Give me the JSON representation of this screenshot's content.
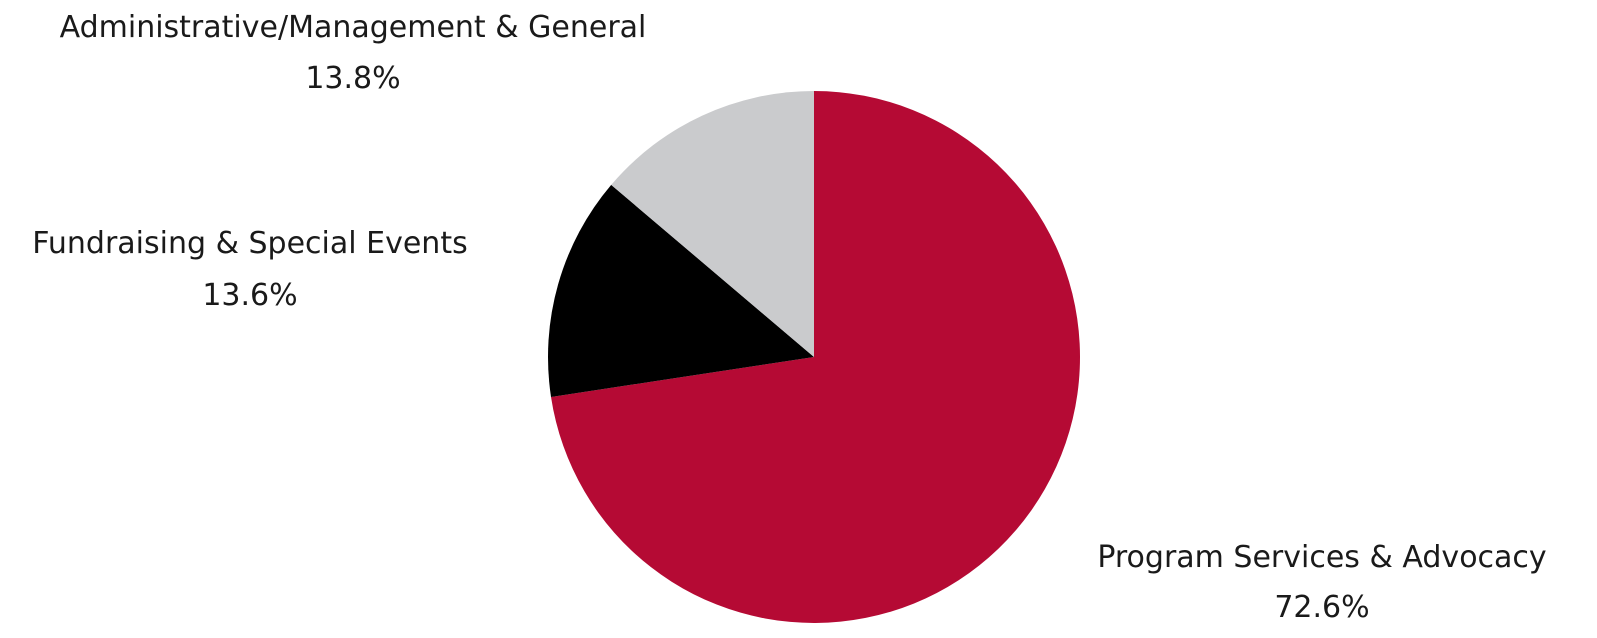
{
  "chart_data": {
    "type": "pie",
    "title": "",
    "start_angle_deg": 0,
    "direction": "clockwise",
    "legend": "none",
    "slices": [
      {
        "label": "Program Services & Advocacy",
        "value": 72.6,
        "display_value": "72.6%",
        "color": "#B50A34"
      },
      {
        "label": "Fundraising & Special Events",
        "value": 13.6,
        "display_value": "13.6%",
        "color": "#000000"
      },
      {
        "label": "Administrative/Management & General",
        "value": 13.8,
        "display_value": "13.8%",
        "color": "#CACBCD"
      }
    ]
  }
}
